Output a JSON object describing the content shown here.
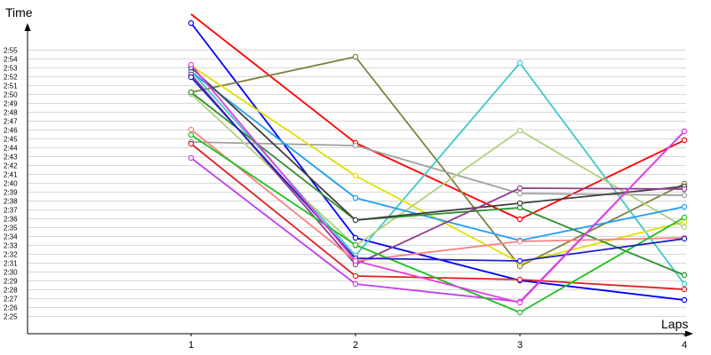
{
  "chart_data": {
    "type": "line",
    "xlabel": "Laps",
    "ylabel": "Time",
    "x": [
      "1",
      "2",
      "3",
      "4"
    ],
    "y_ticks": [
      "2:25",
      "2:26",
      "2:27",
      "2:28",
      "2:29",
      "2:30",
      "2:31",
      "2:32",
      "2:33",
      "2:34",
      "2:35",
      "2:36",
      "2:37",
      "2:38",
      "2:39",
      "2:40",
      "2:41",
      "2:42",
      "2:43",
      "2:44",
      "2:45",
      "2:46",
      "2:47",
      "2:48",
      "2:49",
      "2:50",
      "2:51",
      "2:52",
      "2:53",
      "2:54",
      "2:55"
    ],
    "ylim": [
      "2:24",
      "2:56"
    ],
    "grid": true,
    "series": [
      {
        "color": "#ff0000",
        "values": [
          "2:59",
          "2:44.5",
          "2:35.9",
          "2:44.8"
        ]
      },
      {
        "color": "#0000ff",
        "values": [
          "2:58",
          "2:33.8",
          "2:29",
          "2:26.8"
        ]
      },
      {
        "color": "#808040",
        "values": [
          "2:50.2",
          "2:54.2",
          "2:30.6",
          "2:39.9"
        ]
      },
      {
        "color": "#40c8c8",
        "values": [
          "2:52.6",
          "2:31.8",
          "2:53.5",
          "2:28.6"
        ]
      },
      {
        "color": "#a0a0a0",
        "values": [
          "2:44.6",
          "2:44.2",
          "2:38.8",
          "2:38.6"
        ]
      },
      {
        "color": "#e0e000",
        "values": [
          "2:53.2",
          "2:40.8",
          "2:31",
          "2:35.6"
        ]
      },
      {
        "color": "#b0d080",
        "values": [
          "2:50",
          "2:32.9",
          "2:45.9",
          "2:35"
        ]
      },
      {
        "color": "#20a0f0",
        "values": [
          "2:52.5",
          "2:38.3",
          "2:33.5",
          "2:37.3"
        ]
      },
      {
        "color": "#309030",
        "values": [
          "2:50.2",
          "2:35.8",
          "2:37.2",
          "2:29.6"
        ]
      },
      {
        "color": "#404040",
        "values": [
          "2:53",
          "2:35.8",
          "2:37.7",
          "2:39.6"
        ]
      },
      {
        "color": "#904090",
        "values": [
          "2:52.2",
          "2:30.8",
          "2:39.4",
          "2:39.3"
        ]
      },
      {
        "color": "#ff8080",
        "values": [
          "2:46",
          "2:31.2",
          "2:33.4",
          "2:33.8"
        ]
      },
      {
        "color": "#c040f0",
        "values": [
          "2:42.8",
          "2:28.6",
          "2:26.6",
          "2:45.8"
        ]
      },
      {
        "color": "#e02020",
        "values": [
          "2:44.4",
          "2:29.5",
          "2:29.1",
          "2:28"
        ]
      },
      {
        "color": "#20c020",
        "values": [
          "2:45.4",
          "2:33",
          "2:25.4",
          "2:36.1"
        ]
      },
      {
        "color": "#2020c0",
        "values": [
          "2:51.9",
          "2:31.5",
          "2:31.2",
          "2:33.7"
        ]
      },
      {
        "color": "#e040e0",
        "values": [
          "2:53.3",
          "2:31.2",
          "2:26.5",
          "2:45.8"
        ]
      }
    ]
  }
}
